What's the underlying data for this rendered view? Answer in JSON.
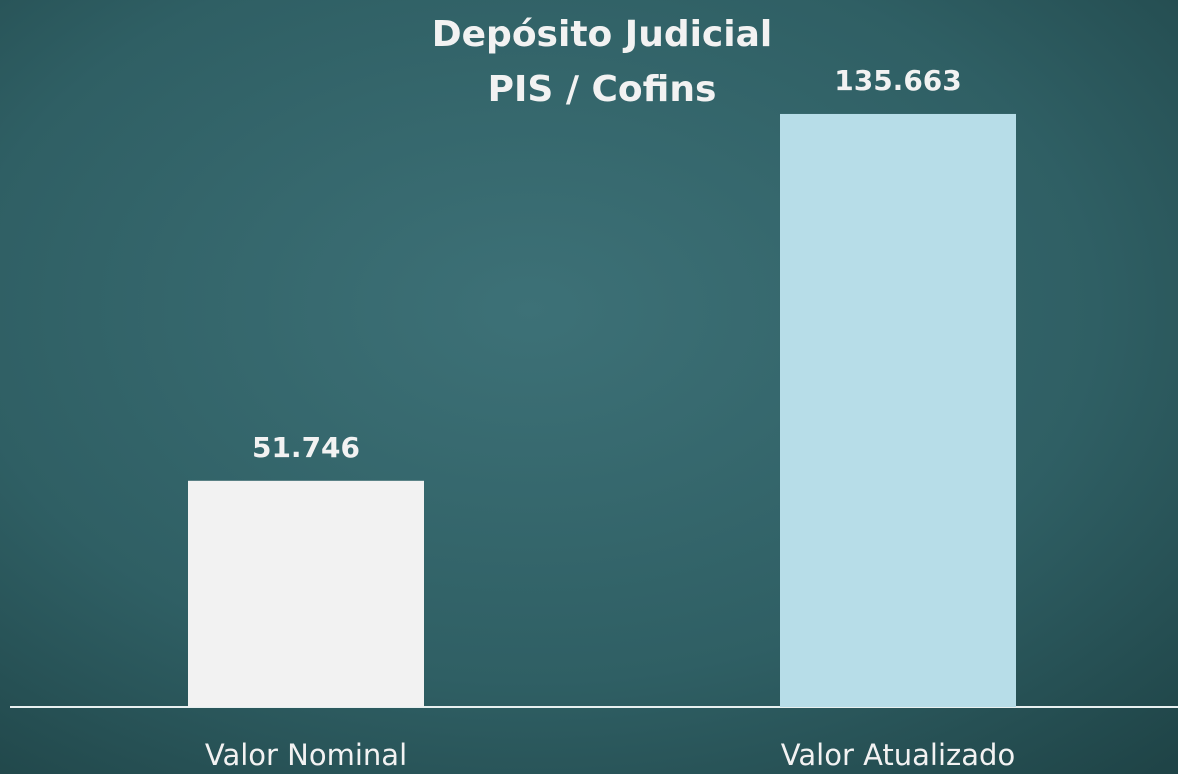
{
  "chart_data": {
    "type": "bar",
    "title": [
      "Depósito Judicial",
      "PIS / Cofins"
    ],
    "categories": [
      "Valor Nominal",
      "Valor Atualizado"
    ],
    "values": [
      51746,
      135663
    ],
    "value_labels": [
      "51.746",
      "135.663"
    ],
    "colors": [
      "#f2f2f2",
      "#b7dde8"
    ],
    "ylim": [
      0,
      140000
    ]
  }
}
